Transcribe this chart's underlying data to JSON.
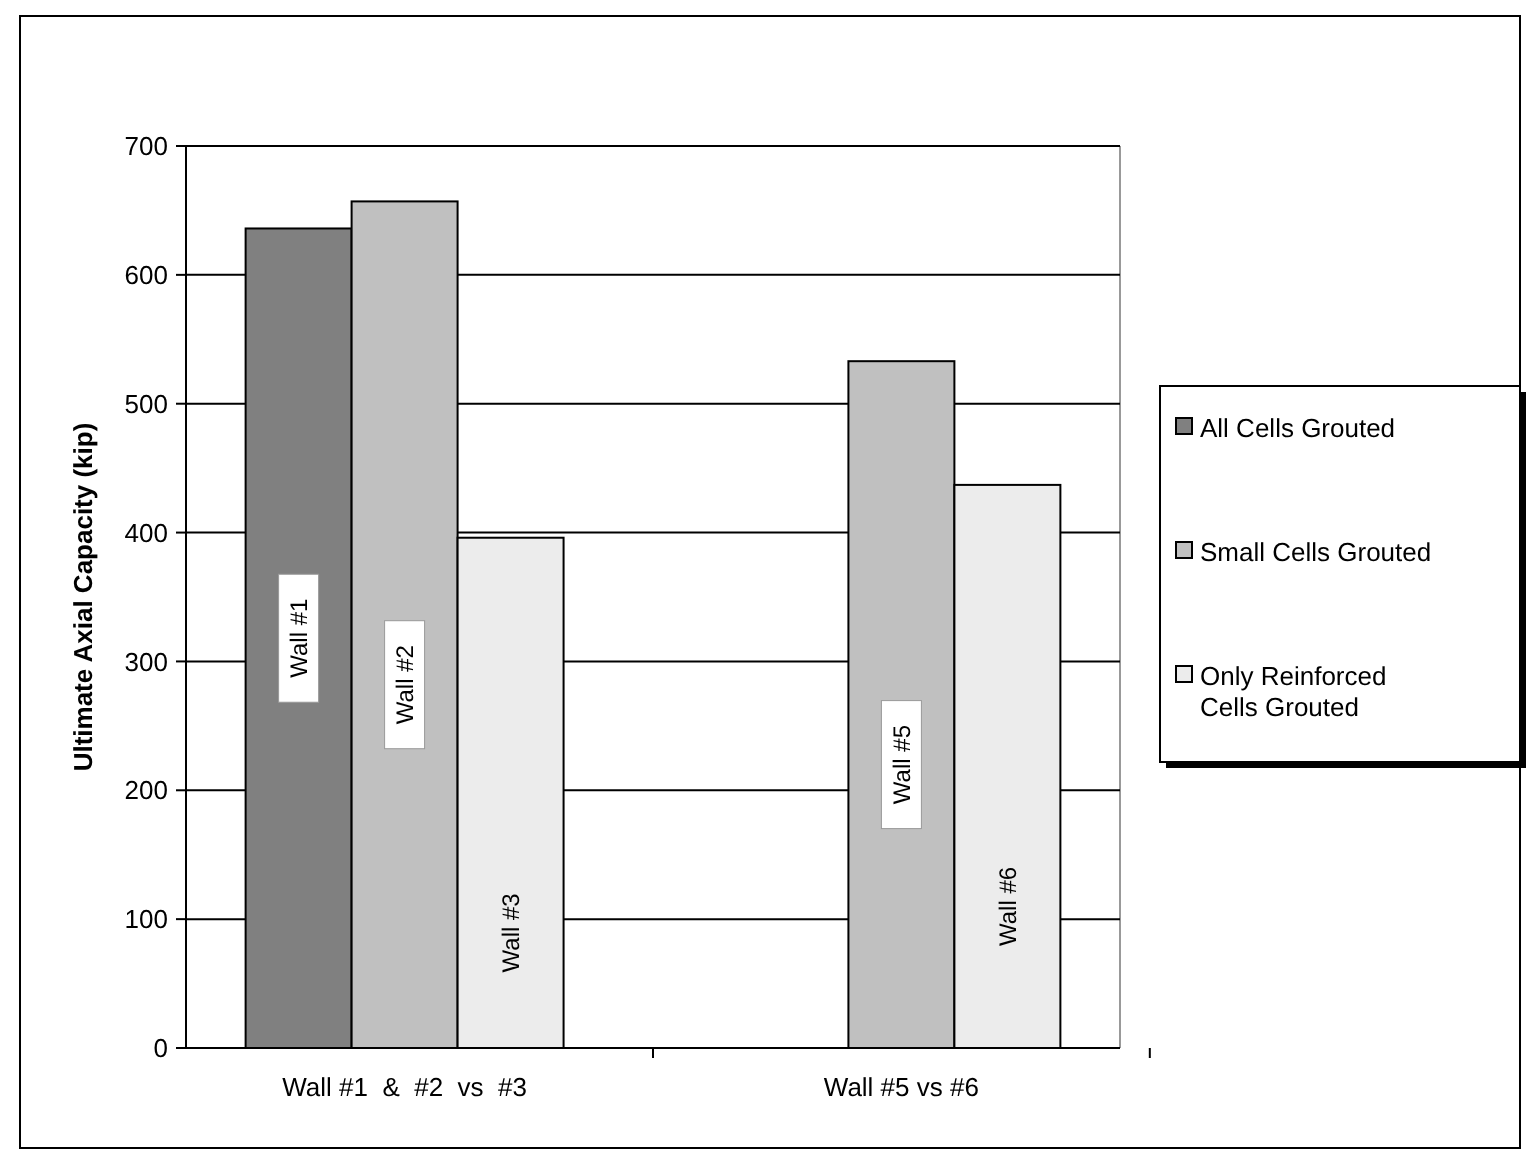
{
  "chart_data": {
    "type": "bar",
    "ylabel": "Ultimate Axial Capacity (kip)",
    "categories": [
      "Wall #1  &  #2  vs  #3",
      "Wall #5 vs #6"
    ],
    "series": [
      {
        "name": "All Cells Grouted",
        "color": "#808080",
        "values": [
          636,
          null
        ]
      },
      {
        "name": "Small Cells Grouted",
        "color": "#c0c0c0",
        "values": [
          657,
          533
        ]
      },
      {
        "name": "Only Reinforced Cells Grouted",
        "color": "#ececec",
        "values": [
          396,
          437
        ]
      }
    ],
    "annotations": [
      "Wall #1",
      "Wall #2",
      "Wall #3",
      "Wall #5",
      "Wall #6"
    ],
    "ylim": [
      0,
      700
    ],
    "yticks": [
      0,
      100,
      200,
      300,
      400,
      500,
      600,
      700
    ],
    "grid": "y",
    "legend": "right"
  }
}
